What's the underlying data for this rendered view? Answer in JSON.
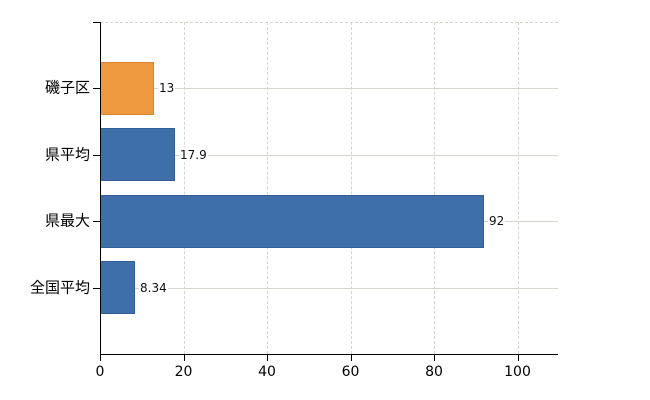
{
  "chart_data": {
    "type": "bar",
    "orientation": "horizontal",
    "title": "",
    "xlabel": "",
    "ylabel": "",
    "categories": [
      "磯子区",
      "県平均",
      "県最大",
      "全国平均"
    ],
    "values": [
      13,
      17.9,
      92,
      8.34
    ],
    "value_labels": [
      "13",
      "17.9",
      "92",
      "8.34"
    ],
    "x_ticks": [
      0,
      20,
      40,
      60,
      80,
      100
    ],
    "x_tick_labels": [
      "0",
      "20",
      "40",
      "60",
      "80",
      "100"
    ],
    "xlim": [
      0,
      109.7
    ],
    "grid": true,
    "legend": false,
    "bar_colors": [
      {
        "fill": "#ee9940",
        "border": "#dc8430"
      },
      {
        "fill": "#3e6fa9",
        "border": "#315e97"
      },
      {
        "fill": "#3e6fa9",
        "border": "#315e97"
      },
      {
        "fill": "#3e6fa9",
        "border": "#315e97"
      }
    ],
    "colors": {
      "background": "#ffffff",
      "gridline": "#d5d5ce",
      "axis": "#000000",
      "text": "#000000"
    }
  }
}
